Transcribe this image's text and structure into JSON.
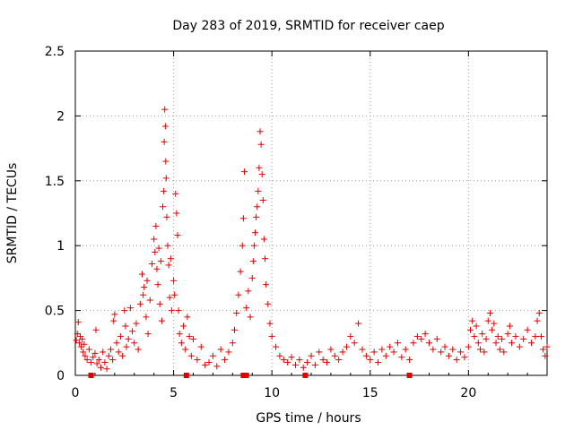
{
  "chart_data": {
    "type": "scatter",
    "title": "Day 283 of 2019, SRMTID for receiver caep",
    "xlabel": "GPS time / hours",
    "ylabel": "SRMTID / TECUs",
    "xlim": [
      0,
      24
    ],
    "ylim": [
      0,
      2.5
    ],
    "x_ticks": [
      "0",
      "5",
      "10",
      "15",
      "20"
    ],
    "x_tick_values": [
      0,
      5,
      10,
      15,
      20
    ],
    "y_ticks": [
      "0",
      "0.5",
      "1",
      "1.5",
      "2",
      "2.5"
    ],
    "y_tick_values": [
      0,
      0.5,
      1,
      1.5,
      2,
      2.5
    ],
    "grid": true,
    "series_color": "#e00000",
    "series": [
      {
        "name": "SRMTID",
        "marker": "plus",
        "points": [
          [
            0.05,
            0.27
          ],
          [
            0.1,
            0.32
          ],
          [
            0.15,
            0.41
          ],
          [
            0.2,
            0.25
          ],
          [
            0.25,
            0.3
          ],
          [
            0.3,
            0.22
          ],
          [
            0.35,
            0.28
          ],
          [
            0.4,
            0.18
          ],
          [
            0.45,
            0.24
          ],
          [
            0.5,
            0.15
          ],
          [
            0.6,
            0.12
          ],
          [
            0.7,
            0.2
          ],
          [
            0.8,
            0.1
          ],
          [
            0.9,
            0.14
          ],
          [
            1.0,
            0.17
          ],
          [
            1.05,
            0.35
          ],
          [
            1.1,
            0.09
          ],
          [
            1.2,
            0.12
          ],
          [
            1.3,
            0.06
          ],
          [
            1.4,
            0.18
          ],
          [
            1.5,
            0.1
          ],
          [
            1.6,
            0.05
          ],
          [
            1.7,
            0.15
          ],
          [
            1.8,
            0.2
          ],
          [
            1.9,
            0.12
          ],
          [
            1.95,
            0.42
          ],
          [
            2.0,
            0.47
          ],
          [
            2.1,
            0.25
          ],
          [
            2.2,
            0.18
          ],
          [
            2.3,
            0.3
          ],
          [
            2.4,
            0.15
          ],
          [
            2.5,
            0.5
          ],
          [
            2.55,
            0.38
          ],
          [
            2.6,
            0.22
          ],
          [
            2.7,
            0.28
          ],
          [
            2.8,
            0.52
          ],
          [
            2.9,
            0.34
          ],
          [
            3.0,
            0.25
          ],
          [
            3.1,
            0.4
          ],
          [
            3.2,
            0.2
          ],
          [
            3.3,
            0.55
          ],
          [
            3.4,
            0.78
          ],
          [
            3.45,
            0.62
          ],
          [
            3.5,
            0.68
          ],
          [
            3.6,
            0.45
          ],
          [
            3.65,
            0.73
          ],
          [
            3.7,
            0.32
          ],
          [
            3.8,
            0.58
          ],
          [
            3.9,
            0.86
          ],
          [
            4.0,
            1.05
          ],
          [
            4.05,
            0.95
          ],
          [
            4.1,
            1.15
          ],
          [
            4.15,
            0.82
          ],
          [
            4.2,
            0.7
          ],
          [
            4.25,
            0.98
          ],
          [
            4.3,
            0.55
          ],
          [
            4.35,
            0.88
          ],
          [
            4.4,
            0.42
          ],
          [
            4.45,
            1.3
          ],
          [
            4.5,
            1.42
          ],
          [
            4.52,
            1.8
          ],
          [
            4.55,
            2.05
          ],
          [
            4.58,
            1.92
          ],
          [
            4.6,
            1.65
          ],
          [
            4.62,
            1.52
          ],
          [
            4.65,
            1.22
          ],
          [
            4.7,
            1.0
          ],
          [
            4.75,
            0.85
          ],
          [
            4.8,
            0.6
          ],
          [
            4.85,
            0.9
          ],
          [
            4.9,
            0.5
          ],
          [
            5.0,
            0.73
          ],
          [
            5.05,
            0.62
          ],
          [
            5.1,
            1.4
          ],
          [
            5.15,
            1.25
          ],
          [
            5.2,
            1.08
          ],
          [
            5.25,
            0.5
          ],
          [
            5.3,
            0.32
          ],
          [
            5.4,
            0.25
          ],
          [
            5.5,
            0.38
          ],
          [
            5.6,
            0.2
          ],
          [
            5.7,
            0.45
          ],
          [
            5.8,
            0.3
          ],
          [
            5.9,
            0.15
          ],
          [
            6.0,
            0.28
          ],
          [
            6.2,
            0.12
          ],
          [
            6.4,
            0.22
          ],
          [
            6.6,
            0.08
          ],
          [
            6.8,
            0.1
          ],
          [
            7.0,
            0.15
          ],
          [
            7.2,
            0.07
          ],
          [
            7.4,
            0.2
          ],
          [
            7.6,
            0.12
          ],
          [
            7.8,
            0.18
          ],
          [
            8.0,
            0.25
          ],
          [
            8.1,
            0.35
          ],
          [
            8.2,
            0.48
          ],
          [
            8.3,
            0.62
          ],
          [
            8.4,
            0.8
          ],
          [
            8.5,
            1.0
          ],
          [
            8.55,
            1.21
          ],
          [
            8.6,
            1.57
          ],
          [
            8.7,
            0.52
          ],
          [
            8.8,
            0.65
          ],
          [
            8.9,
            0.45
          ],
          [
            9.0,
            0.75
          ],
          [
            9.05,
            0.88
          ],
          [
            9.1,
            1.0
          ],
          [
            9.15,
            1.1
          ],
          [
            9.2,
            1.22
          ],
          [
            9.25,
            1.3
          ],
          [
            9.3,
            1.42
          ],
          [
            9.35,
            1.6
          ],
          [
            9.4,
            1.88
          ],
          [
            9.45,
            1.78
          ],
          [
            9.5,
            1.55
          ],
          [
            9.55,
            1.35
          ],
          [
            9.6,
            1.05
          ],
          [
            9.65,
            0.9
          ],
          [
            9.7,
            0.7
          ],
          [
            9.8,
            0.55
          ],
          [
            9.9,
            0.4
          ],
          [
            10.0,
            0.3
          ],
          [
            10.2,
            0.22
          ],
          [
            10.4,
            0.15
          ],
          [
            10.6,
            0.12
          ],
          [
            10.8,
            0.1
          ],
          [
            11.0,
            0.14
          ],
          [
            11.2,
            0.08
          ],
          [
            11.4,
            0.12
          ],
          [
            11.6,
            0.06
          ],
          [
            11.8,
            0.1
          ],
          [
            12.0,
            0.15
          ],
          [
            12.2,
            0.08
          ],
          [
            12.4,
            0.18
          ],
          [
            12.6,
            0.12
          ],
          [
            12.8,
            0.1
          ],
          [
            13.0,
            0.2
          ],
          [
            13.2,
            0.15
          ],
          [
            13.4,
            0.12
          ],
          [
            13.6,
            0.18
          ],
          [
            13.8,
            0.22
          ],
          [
            14.0,
            0.3
          ],
          [
            14.2,
            0.25
          ],
          [
            14.4,
            0.4
          ],
          [
            14.6,
            0.2
          ],
          [
            14.8,
            0.15
          ],
          [
            15.0,
            0.12
          ],
          [
            15.2,
            0.18
          ],
          [
            15.4,
            0.1
          ],
          [
            15.6,
            0.2
          ],
          [
            15.8,
            0.15
          ],
          [
            16.0,
            0.22
          ],
          [
            16.2,
            0.18
          ],
          [
            16.4,
            0.25
          ],
          [
            16.6,
            0.14
          ],
          [
            16.8,
            0.2
          ],
          [
            17.0,
            0.12
          ],
          [
            17.2,
            0.25
          ],
          [
            17.4,
            0.3
          ],
          [
            17.6,
            0.28
          ],
          [
            17.8,
            0.32
          ],
          [
            18.0,
            0.25
          ],
          [
            18.2,
            0.2
          ],
          [
            18.4,
            0.28
          ],
          [
            18.6,
            0.18
          ],
          [
            18.8,
            0.22
          ],
          [
            19.0,
            0.15
          ],
          [
            19.2,
            0.2
          ],
          [
            19.4,
            0.12
          ],
          [
            19.6,
            0.18
          ],
          [
            19.8,
            0.14
          ],
          [
            20.0,
            0.22
          ],
          [
            20.1,
            0.35
          ],
          [
            20.2,
            0.42
          ],
          [
            20.3,
            0.3
          ],
          [
            20.4,
            0.38
          ],
          [
            20.5,
            0.25
          ],
          [
            20.6,
            0.2
          ],
          [
            20.7,
            0.32
          ],
          [
            20.8,
            0.18
          ],
          [
            20.9,
            0.28
          ],
          [
            21.0,
            0.42
          ],
          [
            21.1,
            0.48
          ],
          [
            21.2,
            0.35
          ],
          [
            21.3,
            0.4
          ],
          [
            21.4,
            0.25
          ],
          [
            21.5,
            0.3
          ],
          [
            21.6,
            0.2
          ],
          [
            21.7,
            0.28
          ],
          [
            21.8,
            0.18
          ],
          [
            22.0,
            0.32
          ],
          [
            22.1,
            0.38
          ],
          [
            22.2,
            0.25
          ],
          [
            22.4,
            0.3
          ],
          [
            22.6,
            0.22
          ],
          [
            22.8,
            0.28
          ],
          [
            23.0,
            0.35
          ],
          [
            23.2,
            0.25
          ],
          [
            23.4,
            0.3
          ],
          [
            23.5,
            0.42
          ],
          [
            23.6,
            0.48
          ],
          [
            23.7,
            0.3
          ],
          [
            23.8,
            0.2
          ],
          [
            23.9,
            0.15
          ],
          [
            24.0,
            0.22
          ]
        ]
      },
      {
        "name": "zero-markers",
        "marker": "square",
        "points": [
          [
            0.8,
            0
          ],
          [
            5.65,
            0
          ],
          [
            8.55,
            0
          ],
          [
            8.7,
            0
          ],
          [
            11.7,
            0
          ],
          [
            17.0,
            0
          ]
        ]
      }
    ]
  }
}
